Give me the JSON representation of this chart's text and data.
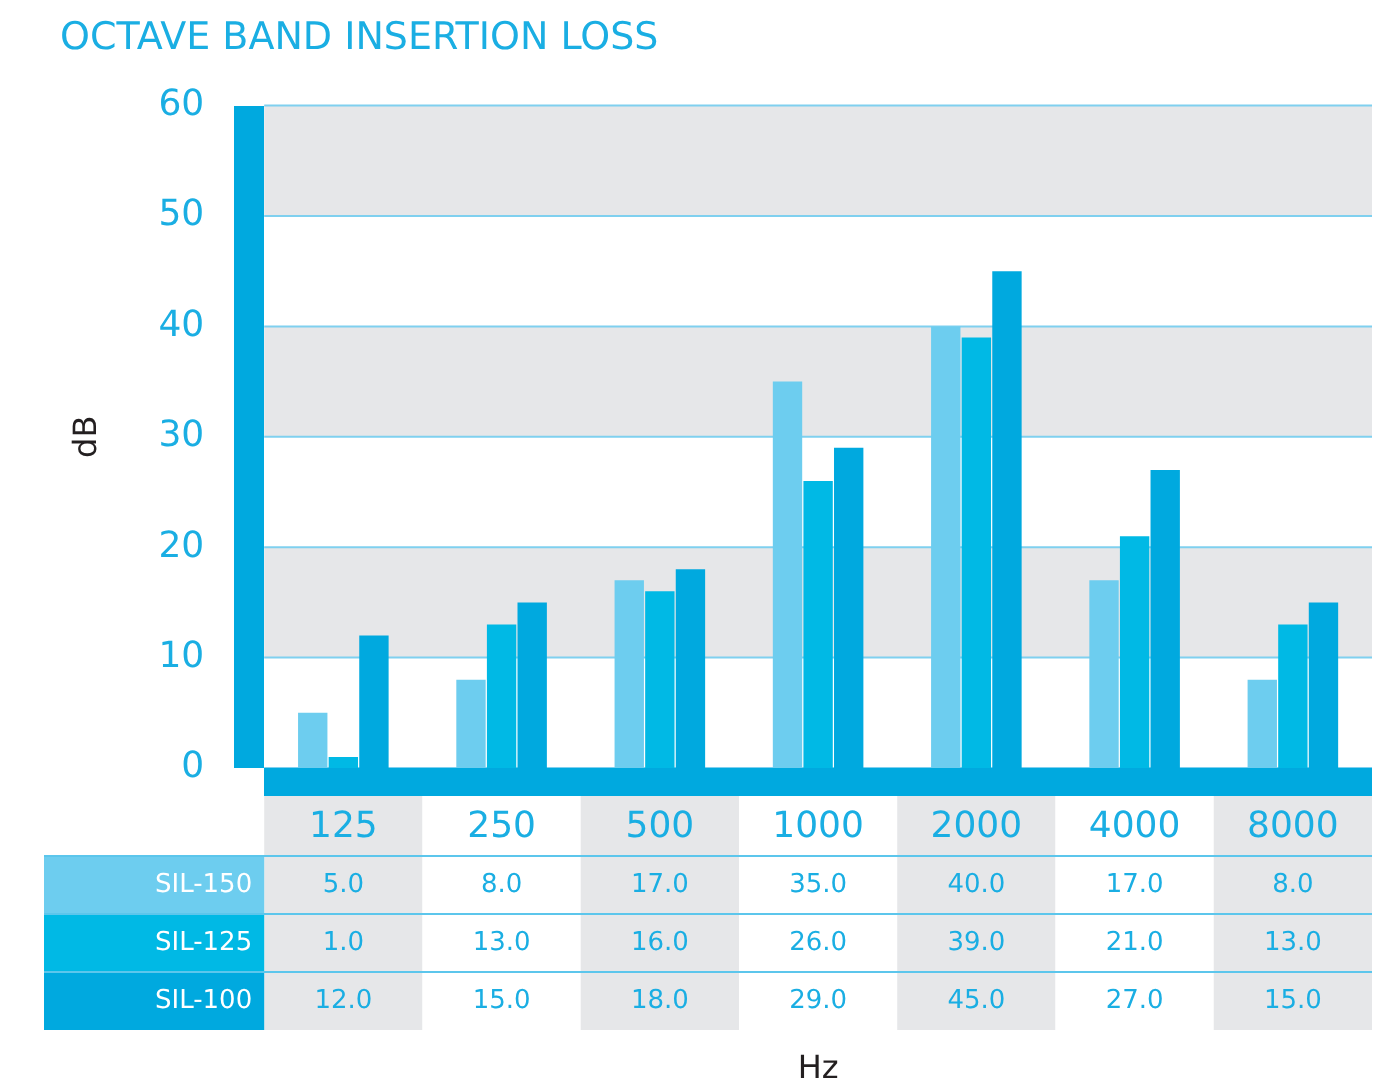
{
  "chart_data": {
    "type": "bar",
    "title": "OCTAVE BAND INSERTION LOSS",
    "ylabel": "dB",
    "annotations": [
      "Hz"
    ],
    "categories": [
      "125",
      "250",
      "500",
      "1000",
      "2000",
      "4000",
      "8000"
    ],
    "series": [
      {
        "name": "SIL-150",
        "color": "#6dcdef",
        "values": [
          5.0,
          8.0,
          17.0,
          35.0,
          40.0,
          17.0,
          8.0
        ],
        "value_labels": [
          "5.0",
          "8.0",
          "17.0",
          "35.0",
          "40.0",
          "17.0",
          "8.0"
        ]
      },
      {
        "name": "SIL-125",
        "color": "#00b9e5",
        "values": [
          1.0,
          13.0,
          16.0,
          26.0,
          39.0,
          21.0,
          13.0
        ],
        "value_labels": [
          "1.0",
          "13.0",
          "16.0",
          "26.0",
          "39.0",
          "21.0",
          "13.0"
        ]
      },
      {
        "name": "SIL-100",
        "color": "#00a9df",
        "values": [
          12.0,
          15.0,
          18.0,
          29.0,
          45.0,
          27.0,
          15.0
        ],
        "value_labels": [
          "12.0",
          "15.0",
          "18.0",
          "29.0",
          "45.0",
          "27.0",
          "15.0"
        ]
      }
    ],
    "ylim": [
      0,
      60
    ],
    "yticks": [
      0,
      10,
      20,
      30,
      40,
      50,
      60
    ],
    "grid": "y",
    "legend": false
  }
}
